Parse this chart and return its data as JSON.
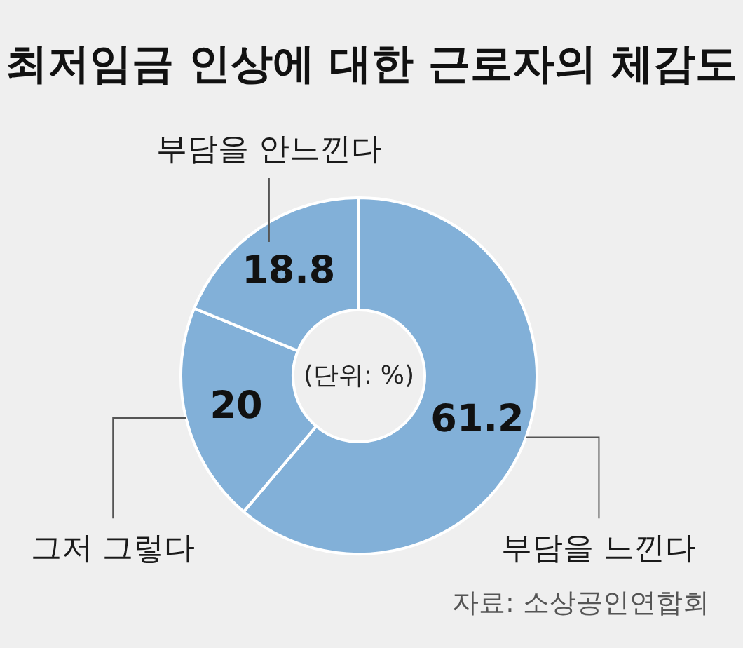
{
  "chart_data": {
    "type": "donut",
    "title": "최저임금 인상에 대한 근로자의 체감도",
    "categories": [
      "부담을 느낀다",
      "그저 그렇다",
      "부담을 안느낀다"
    ],
    "values": [
      61.2,
      20,
      18.8
    ],
    "colors": [
      "#82b0d8",
      "#82b0d8",
      "#82b0d8"
    ],
    "data_labels": true,
    "legend": false,
    "annotations": [
      "(단위: %)",
      "자료: 소상공인연합회"
    ]
  }
}
